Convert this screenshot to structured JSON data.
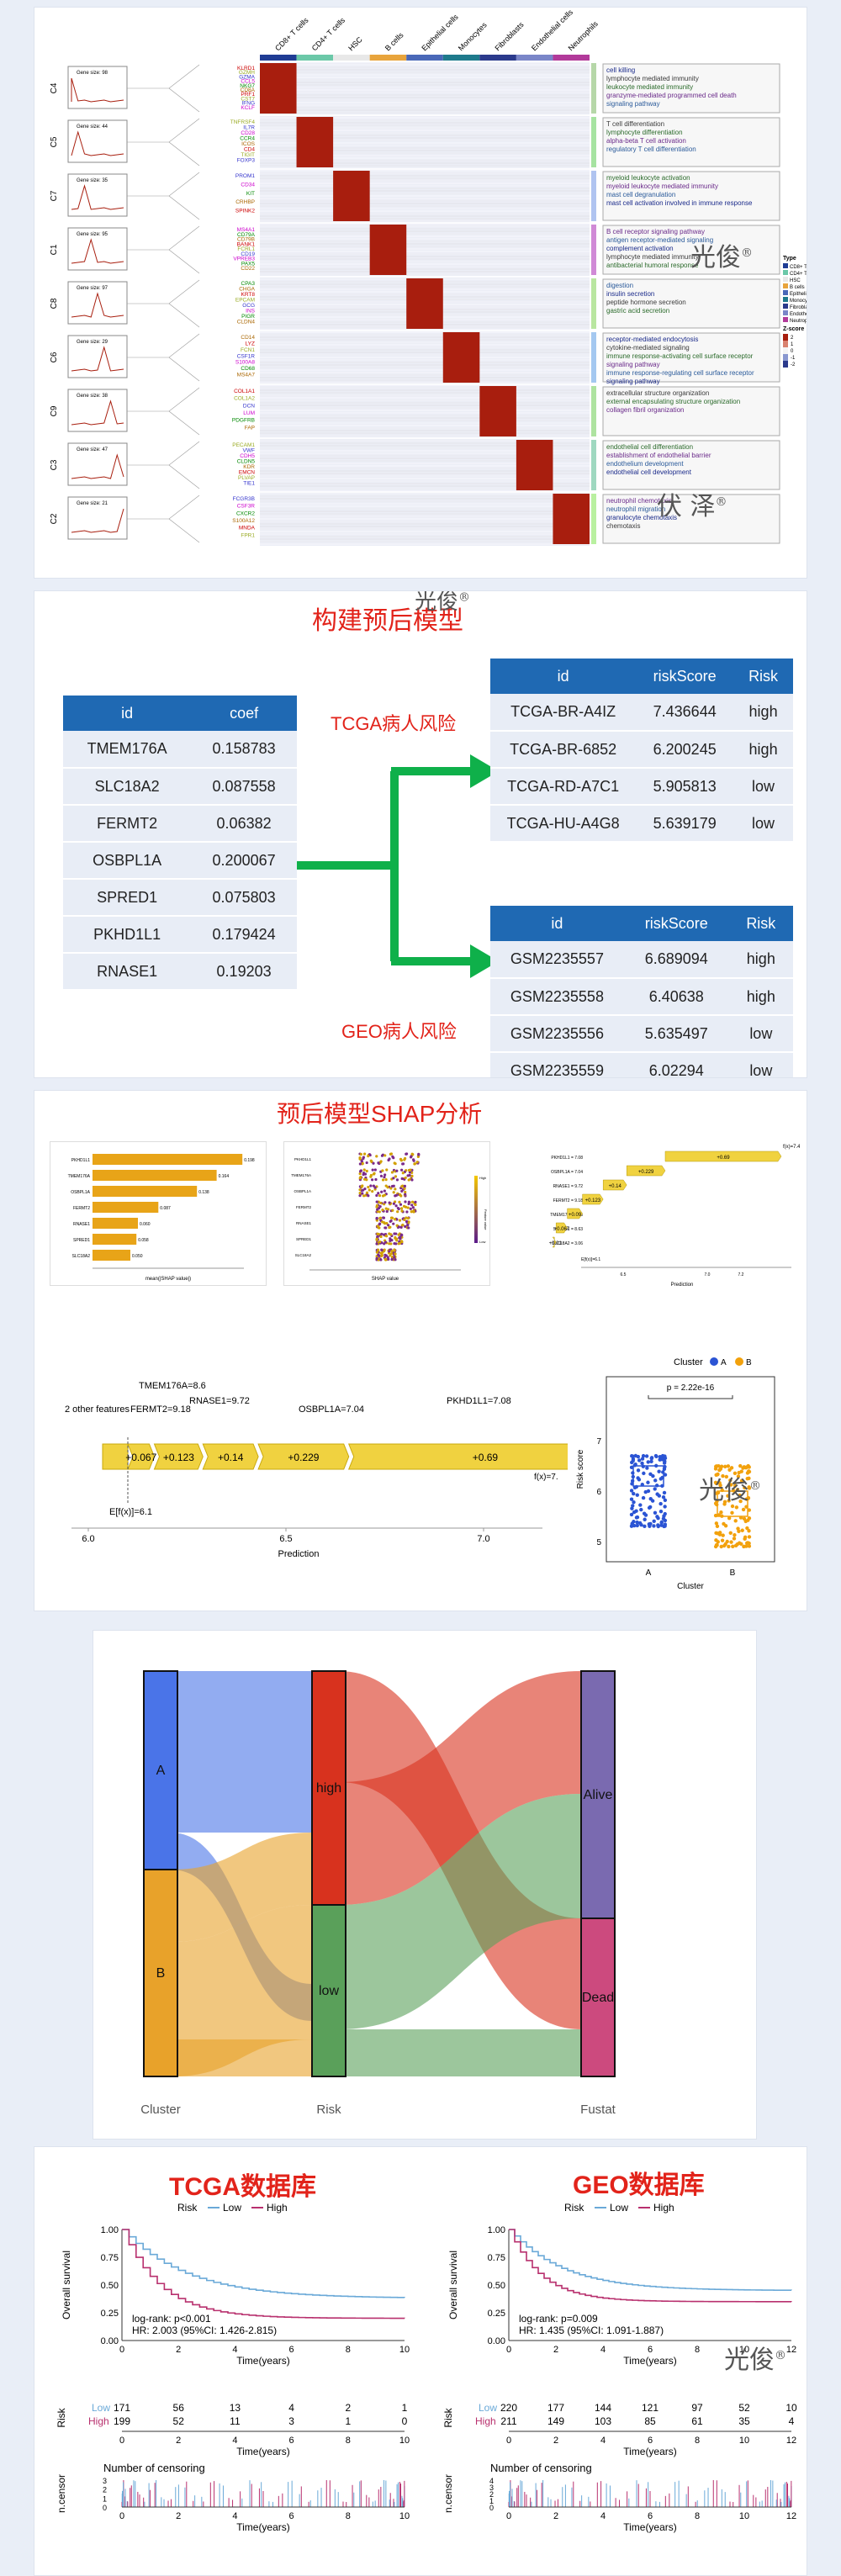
{
  "watermark": {
    "text": "光俊",
    "mark": "®",
    "text2": "伏 泽"
  },
  "heatmap": {
    "columns": [
      "CD8+ T cells",
      "CD4+ T cells",
      "HSC",
      "B cells",
      "Epithelial cells",
      "Monocytes",
      "Fibroblasts",
      "Endothelial cells",
      "Neutrophils"
    ],
    "column_colors": [
      "#1f3c94",
      "#6bc8a8",
      "#e8e8e8",
      "#e8a43c",
      "#4a68b8",
      "#1e7a8c",
      "#2b3a8c",
      "#7a86c8",
      "#b23a9a"
    ],
    "clusters": [
      {
        "id": "C4",
        "mini": "Gene size: 98",
        "genes": [
          "KLRD1",
          "GZMH",
          "GZMA",
          "CCL5",
          "NKG7",
          "CD8A",
          "PRF1",
          "CST7",
          "IFNG",
          "KCLF"
        ],
        "terms": [
          "cell killing",
          "lymphocyte mediated immunity",
          "leukocyte mediated immunity",
          "granzyme-mediated programmed cell death",
          "signaling pathway"
        ]
      },
      {
        "id": "C5",
        "mini": "Gene size: 44",
        "genes": [
          "TNFRSF4",
          "IL7R",
          "CD28",
          "CCR4",
          "ICOS",
          "CD4",
          "TIGIT",
          "FOXP3"
        ],
        "terms": [
          "T cell differentiation",
          "lymphocyte differentiation",
          "alpha-beta T cell activation",
          "regulatory T cell differentiation"
        ]
      },
      {
        "id": "C7",
        "mini": "Gene size: 35",
        "genes": [
          "PROM1",
          "CD34",
          "KIT",
          "CRHBP",
          "SPINK2"
        ],
        "terms": [
          "myeloid leukocyte activation",
          "myeloid leukocyte mediated immunity",
          "mast cell degranulation",
          "mast cell activation involved in immune response"
        ]
      },
      {
        "id": "C1",
        "mini": "Gene size: 95",
        "genes": [
          "MS4A1",
          "CD79A",
          "CD79B",
          "BANK1",
          "FCRL1",
          "CD19",
          "VPREB3",
          "PAX5",
          "CD22"
        ],
        "terms": [
          "B cell receptor signaling pathway",
          "antigen receptor-mediated signaling",
          "complement activation",
          "lymphocyte mediated immunity",
          "antibacterial humoral response"
        ]
      },
      {
        "id": "C8",
        "mini": "Gene size: 97",
        "genes": [
          "CPA3",
          "CHGA",
          "KRT8",
          "EPCAM",
          "GCG",
          "INS",
          "PIGR",
          "CLDN4"
        ],
        "terms": [
          "digestion",
          "insulin secretion",
          "peptide hormone secretion",
          "gastric acid secretion"
        ]
      },
      {
        "id": "C6",
        "mini": "Gene size: 29",
        "genes": [
          "CD14",
          "LYZ",
          "FCN1",
          "CSF1R",
          "S100A8",
          "CD68",
          "MS4A7"
        ],
        "terms": [
          "receptor-mediated endocytosis",
          "cytokine-mediated signaling",
          "immune response-activating cell surface receptor",
          "signaling pathway",
          "immune response-regulating cell surface receptor",
          "signaling pathway"
        ]
      },
      {
        "id": "C9",
        "mini": "Gene size: 38",
        "genes": [
          "COL1A1",
          "COL1A2",
          "DCN",
          "LUM",
          "PDGFRB",
          "FAP"
        ],
        "terms": [
          "extracellular structure organization",
          "external encapsulating structure organization",
          "collagen fibril organization"
        ]
      },
      {
        "id": "C3",
        "mini": "Gene size: 47",
        "genes": [
          "PECAM1",
          "VWF",
          "CDH5",
          "CLDN5",
          "KDR",
          "EMCN",
          "PLVAP",
          "TIE1"
        ],
        "terms": [
          "endothelial cell differentiation",
          "establishment of endothelial barrier",
          "endothelium development",
          "endothelial cell development"
        ]
      },
      {
        "id": "C2",
        "mini": "Gene size: 21",
        "genes": [
          "FCGR3B",
          "CSF3R",
          "CXCR2",
          "S100A12",
          "MNDA",
          "FPR1"
        ],
        "terms": [
          "neutrophil chemotaxis",
          "neutrophil migration",
          "granulocyte chemotaxis",
          "chemotaxis"
        ]
      }
    ],
    "legend_title": "Z-score",
    "legend_ticks": [
      "2",
      "1",
      "0",
      "-1",
      "-2"
    ],
    "legend_groups": [
      "CD8+ T cells",
      "CD4+ T cells",
      "HSC",
      "B cells",
      "Epithelial cells",
      "Monocytes",
      "Fibroblasts",
      "Endothelial cells",
      "Neutrophils"
    ],
    "legend_head": "Type"
  },
  "model": {
    "title": "构建预后模型",
    "coef_table": {
      "headers": [
        "id",
        "coef"
      ],
      "rows": [
        [
          "TMEM176A",
          "0.158783"
        ],
        [
          "SLC18A2",
          "0.087558"
        ],
        [
          "FERMT2",
          "0.06382"
        ],
        [
          "OSBPL1A",
          "0.200067"
        ],
        [
          "SPRED1",
          "0.075803"
        ],
        [
          "PKHD1L1",
          "0.179424"
        ],
        [
          "RNASE1",
          "0.19203"
        ]
      ]
    },
    "tcga_label": "TCGA病人风险",
    "geo_label": "GEO病人风险",
    "tcga_table": {
      "headers": [
        "id",
        "riskScore",
        "Risk"
      ],
      "rows": [
        [
          "TCGA-BR-A4IZ",
          "7.436644",
          "high"
        ],
        [
          "TCGA-BR-6852",
          "6.200245",
          "high"
        ],
        [
          "TCGA-RD-A7C1",
          "5.905813",
          "low"
        ],
        [
          "TCGA-HU-A4G8",
          "5.639179",
          "low"
        ]
      ]
    },
    "geo_table": {
      "headers": [
        "id",
        "riskScore",
        "Risk"
      ],
      "rows": [
        [
          "GSM2235557",
          "6.689094",
          "high"
        ],
        [
          "GSM2235558",
          "6.40638",
          "high"
        ],
        [
          "GSM2235556",
          "5.635497",
          "low"
        ],
        [
          "GSM2235559",
          "6.02294",
          "low"
        ]
      ]
    },
    "arrow_color": "#0fb04a"
  },
  "shap": {
    "title": "预后模型SHAP分析",
    "bar_features": [
      "PKHD1L1",
      "TMEM176A",
      "OSBPL1A",
      "FERMT2",
      "RNASE1",
      "SPRED1",
      "SLC18A2"
    ],
    "bar_values": [
      "0.198",
      "0.164",
      "0.138",
      "0.087",
      "0.060",
      "0.058",
      "0.050"
    ],
    "bar_xlabel": "mean(|SHAP value|)",
    "bee_xlabel": "SHAP value",
    "bee_colorbar": [
      "High",
      "Feature value",
      "Low"
    ],
    "waterfall_fx": "f(x)=7.44",
    "waterfall_items": [
      "PKHD1L1 = 7.08",
      "OSBPL1A = 7.04",
      "RNASE1 = 9.72",
      "FERMT2 = 9.18",
      "TMEM176A = 8.6",
      "SPRED1 = 8.63",
      "SLC18A2 = 3.06"
    ],
    "waterfall_vals": [
      "+0.69",
      "+0.229",
      "+0.14",
      "+0.123",
      "+0.09",
      "+0.067",
      "+0.01"
    ],
    "waterfall_efx": "E[f(x)]=6.1",
    "waterfall_xlabel": "Prediction",
    "force": {
      "labels_top": [
        "TMEM176A=8.6",
        "RNASE1=9.72",
        "2 other features",
        "FERMT2=9.18",
        "OSBPL1A=7.04",
        "PKHD1L1=7.08"
      ],
      "segments": [
        "+0.067",
        "+0.123",
        "+0.14",
        "+0.229",
        "+0.69"
      ],
      "efx": "E[f(x)]=6.1",
      "fx": "f(x)=7.",
      "ticks": [
        "6.0",
        "6.5",
        "7.0"
      ],
      "xlabel": "Prediction"
    },
    "box": {
      "legend_title": "Cluster",
      "groups": [
        "A",
        "B"
      ],
      "colors": [
        "#2b54d4",
        "#f2a10c"
      ],
      "pvalue": "p = 2.22e-16",
      "ylabel": "Risk score",
      "xlabel": "Cluster",
      "yticks": [
        "7",
        "6",
        "5"
      ]
    }
  },
  "sankey": {
    "axes": [
      "Cluster",
      "Risk",
      "Fustat"
    ],
    "nodes": {
      "A": "A",
      "B": "B",
      "high": "high",
      "low": "low",
      "alive": "Alive",
      "dead": "Dead"
    },
    "colors": {
      "A": "#4a74e8",
      "B": "#e8a22a",
      "high": "#d8321e",
      "low": "#5aa05a",
      "alive": "#7a6ab0",
      "dead": "#cc4a7e"
    }
  },
  "km": {
    "left": {
      "title": "TCGA数据库",
      "legend_title": "Risk",
      "legend": [
        "Low",
        "High"
      ],
      "ylabel": "Overall survival",
      "xlabel": "Time(years)",
      "stats": [
        "log-rank: p<0.001",
        "HR: 2.003 (95%CI: 1.426-2.815)"
      ],
      "xticks": [
        "0",
        "2",
        "4",
        "6",
        "8",
        "10"
      ],
      "yticks": [
        "1.00",
        "0.75",
        "0.50",
        "0.25",
        "0.00"
      ],
      "risk_label": "Risk",
      "risk_low": [
        "171",
        "56",
        "13",
        "4",
        "2",
        "1"
      ],
      "risk_high": [
        "199",
        "52",
        "11",
        "3",
        "1",
        "0"
      ],
      "risk_rows": [
        "Low",
        "High"
      ],
      "censor_title": "Number of censoring",
      "censor_ylabel": "n.censor",
      "censor_yticks": [
        "3",
        "2",
        "1",
        "0"
      ]
    },
    "right": {
      "title": "GEO数据库",
      "legend_title": "Risk",
      "legend": [
        "Low",
        "High"
      ],
      "ylabel": "Overall survival",
      "xlabel": "Time(years)",
      "stats": [
        "log-rank: p=0.009",
        "HR: 1.435 (95%CI: 1.091-1.887)"
      ],
      "xticks": [
        "0",
        "2",
        "4",
        "6",
        "8",
        "10",
        "12"
      ],
      "yticks": [
        "1.00",
        "0.75",
        "0.50",
        "0.25",
        "0.00"
      ],
      "risk_label": "Risk",
      "risk_low": [
        "220",
        "177",
        "144",
        "121",
        "97",
        "52",
        "10"
      ],
      "risk_high": [
        "211",
        "149",
        "103",
        "85",
        "61",
        "35",
        "4"
      ],
      "risk_rows": [
        "Low",
        "High"
      ],
      "censor_title": "Number of censoring",
      "censor_ylabel": "n.censor",
      "censor_yticks": [
        "4",
        "3",
        "2",
        "1",
        "0"
      ]
    },
    "colors": {
      "low": "#6aa9d8",
      "high": "#b8306e"
    }
  }
}
